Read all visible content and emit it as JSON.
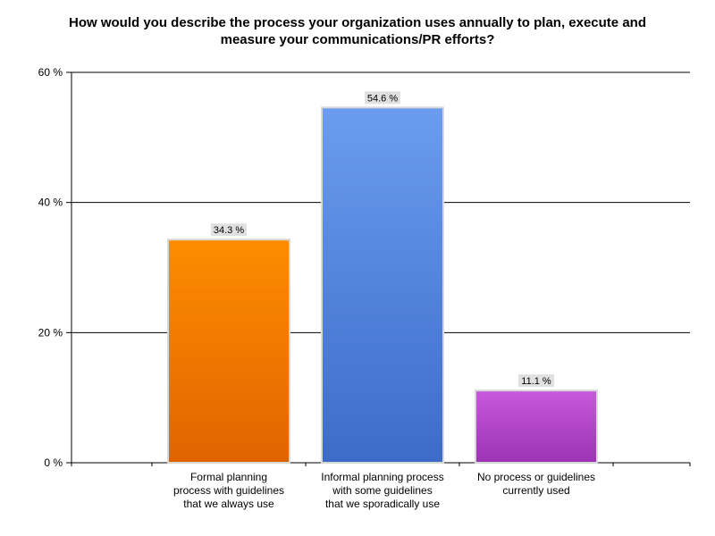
{
  "chart_data": {
    "type": "bar",
    "title_lines": [
      "How would you describe the process your organization uses annually to plan, execute and",
      "measure your communications/PR efforts?"
    ],
    "categories": [
      [
        "Formal planning",
        "process with guidelines",
        "that we always use"
      ],
      [
        "Informal planning process",
        "with some guidelines",
        "that we sporadically use"
      ],
      [
        "No process or guidelines",
        "currently used"
      ]
    ],
    "values": [
      34.3,
      54.6,
      11.1
    ],
    "data_labels": [
      "34.3 %",
      "54.6 %",
      "11.1 %"
    ],
    "bar_colors": [
      [
        "#ff8c00",
        "#e06400"
      ],
      [
        "#6a9cf0",
        "#3c6cc8"
      ],
      [
        "#c85adc",
        "#9c32b4"
      ]
    ],
    "ylim": [
      0,
      60
    ],
    "yticks": [
      0,
      20,
      40,
      60
    ],
    "ytick_labels": [
      "0 %",
      "20 %",
      "40 %",
      "60 %"
    ],
    "grid": true
  }
}
